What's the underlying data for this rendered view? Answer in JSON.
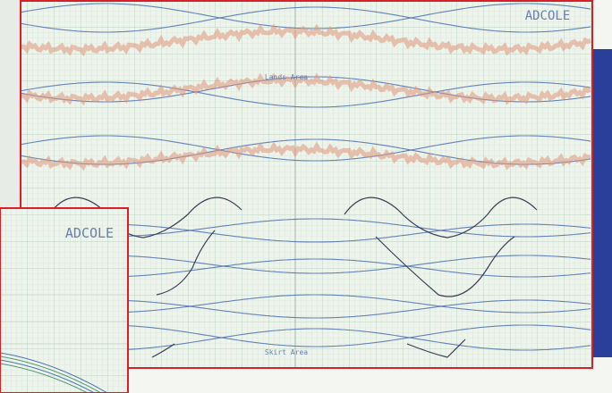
{
  "main_plot": {
    "brand": "ADCOLE",
    "upper_label": "Lands Area",
    "lower_label": "Skirt Area"
  },
  "inset_plot": {
    "brand": "ADCOLE"
  }
}
